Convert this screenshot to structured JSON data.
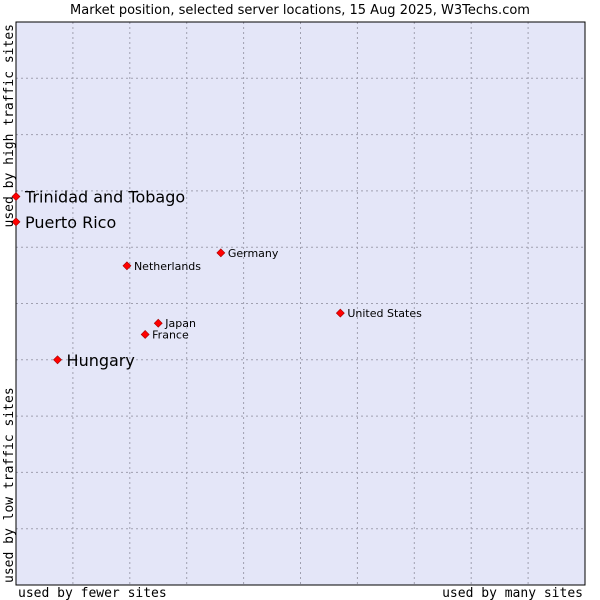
{
  "chart_data": {
    "type": "scatter",
    "title": "Market position, selected server locations, 15 Aug 2025, W3Techs.com",
    "x_axis": {
      "low_label": "used by fewer sites",
      "high_label": "used by many sites",
      "range": [
        0,
        10
      ]
    },
    "y_axis": {
      "low_label": "used by low traffic sites",
      "high_label": "used by high traffic sites",
      "range": [
        0,
        10
      ]
    },
    "grid": true,
    "colors": {
      "plot_background": "#e4e6f8",
      "marker": "#ff0000",
      "grid": "#a0a0b0"
    },
    "points": [
      {
        "label": "Trinidad and Tobago",
        "x": 0.0,
        "y": 6.9,
        "emphasized": true
      },
      {
        "label": "Puerto Rico",
        "x": 0.0,
        "y": 6.45,
        "emphasized": true
      },
      {
        "label": "Germany",
        "x": 3.6,
        "y": 5.9,
        "emphasized": false
      },
      {
        "label": "Netherlands",
        "x": 1.95,
        "y": 5.67,
        "emphasized": false
      },
      {
        "label": "United States",
        "x": 5.7,
        "y": 4.83,
        "emphasized": false
      },
      {
        "label": "Japan",
        "x": 2.5,
        "y": 4.65,
        "emphasized": false
      },
      {
        "label": "France",
        "x": 2.27,
        "y": 4.45,
        "emphasized": false
      },
      {
        "label": "Hungary",
        "x": 0.73,
        "y": 4.0,
        "emphasized": true
      }
    ]
  }
}
